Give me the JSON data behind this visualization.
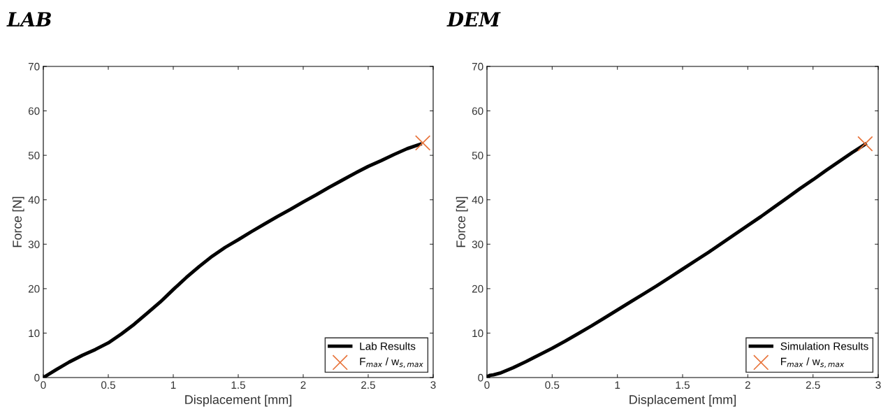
{
  "chart_data": [
    {
      "type": "line",
      "title": "LAB",
      "xlabel": "Displacement [mm]",
      "ylabel": "Force [N]",
      "xlim": [
        0,
        3
      ],
      "ylim": [
        0,
        70
      ],
      "xticks": [
        0,
        0.5,
        1,
        1.5,
        2,
        2.5,
        3
      ],
      "yticks": [
        0,
        10,
        20,
        30,
        40,
        50,
        60,
        70
      ],
      "grid": false,
      "legend": "bottom right",
      "series": [
        {
          "name": "Lab Results",
          "type": "line",
          "color": "#000000",
          "marker": "none",
          "x": [
            0,
            0.1,
            0.2,
            0.3,
            0.4,
            0.5,
            0.6,
            0.7,
            0.8,
            0.9,
            1.0,
            1.1,
            1.2,
            1.3,
            1.4,
            1.5,
            1.6,
            1.7,
            1.8,
            1.9,
            2.0,
            2.1,
            2.2,
            2.3,
            2.4,
            2.5,
            2.6,
            2.7,
            2.8,
            2.9
          ],
          "values": [
            0,
            1.8,
            3.5,
            5,
            6.3,
            7.8,
            9.8,
            12,
            14.5,
            17,
            19.8,
            22.5,
            25,
            27.3,
            29.3,
            31,
            32.8,
            34.5,
            36.2,
            37.8,
            39.5,
            41.1,
            42.8,
            44.4,
            46,
            47.5,
            48.8,
            50.2,
            51.5,
            52.5
          ]
        },
        {
          "name": "F$_{max}$ / w$_{s,max}$",
          "type": "scatter",
          "color": "#e8733a",
          "marker": "cross",
          "x": [
            2.92
          ],
          "values": [
            52.8
          ]
        }
      ]
    },
    {
      "type": "line",
      "title": "DEM",
      "xlabel": "Displacement [mm]",
      "ylabel": "Force [N]",
      "xlim": [
        0,
        3
      ],
      "ylim": [
        0,
        70
      ],
      "xticks": [
        0,
        0.5,
        1,
        1.5,
        2,
        2.5,
        3
      ],
      "yticks": [
        0,
        10,
        20,
        30,
        40,
        50,
        60,
        70
      ],
      "grid": false,
      "legend": "bottom right",
      "series": [
        {
          "name": "Simulation Results",
          "type": "line",
          "color": "#000000",
          "marker": "none",
          "x": [
            0,
            0.02,
            0.05,
            0.1,
            0.2,
            0.3,
            0.4,
            0.5,
            0.6,
            0.7,
            0.8,
            0.9,
            1.0,
            1.1,
            1.2,
            1.3,
            1.4,
            1.5,
            1.6,
            1.7,
            1.8,
            1.9,
            2.0,
            2.1,
            2.2,
            2.3,
            2.4,
            2.5,
            2.6,
            2.7,
            2.8,
            2.9
          ],
          "values": [
            0,
            0.5,
            0.6,
            1.0,
            2.2,
            3.6,
            5.1,
            6.6,
            8.2,
            9.9,
            11.6,
            13.4,
            15.2,
            17,
            18.8,
            20.6,
            22.5,
            24.4,
            26.3,
            28.2,
            30.2,
            32.2,
            34.2,
            36.2,
            38.3,
            40.4,
            42.5,
            44.5,
            46.6,
            48.6,
            50.6,
            52.5
          ]
        },
        {
          "name": "F$_{max}$ / w$_{s,max}$",
          "type": "scatter",
          "color": "#e8733a",
          "marker": "cross",
          "x": [
            2.9
          ],
          "values": [
            52.6
          ]
        }
      ]
    }
  ]
}
